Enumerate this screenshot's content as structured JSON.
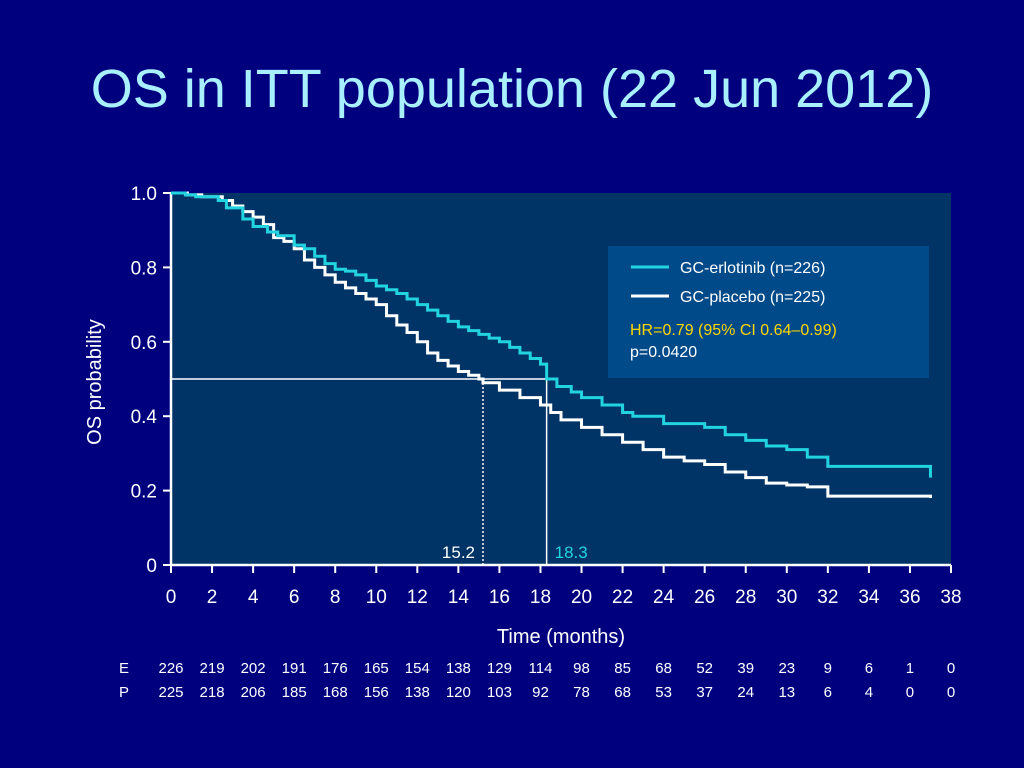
{
  "title": "OS in ITT population (22 Jun 2012)",
  "chart_data": {
    "type": "line",
    "subtype": "kaplan-meier",
    "title": "",
    "xlabel": "Time (months)",
    "ylabel": "OS probability",
    "xlim": [
      0,
      38
    ],
    "ylim": [
      0,
      1.0
    ],
    "x_ticks": [
      0,
      2,
      4,
      6,
      8,
      10,
      12,
      14,
      16,
      18,
      20,
      22,
      24,
      26,
      28,
      30,
      32,
      34,
      36,
      38
    ],
    "y_ticks": [
      0,
      0.2,
      0.4,
      0.6,
      0.8,
      1.0
    ],
    "y_tick_labels": [
      "0",
      "0.2",
      "0.4",
      "0.6",
      "0.8",
      "1.0"
    ],
    "plot_background": "#003366",
    "legend_position": "top-right",
    "series": [
      {
        "name": "GC-erlotinib (n=226)",
        "color": "#22d3e0",
        "x": [
          0,
          0.7,
          1.2,
          2.3,
          2.7,
          3.5,
          4.0,
          4.7,
          5.2,
          6.0,
          6.5,
          7.0,
          7.5,
          8.0,
          8.5,
          9.0,
          9.5,
          10.0,
          10.5,
          11.0,
          11.5,
          12.0,
          12.5,
          13.0,
          13.5,
          14.0,
          14.5,
          15.0,
          15.5,
          16.0,
          16.5,
          17.0,
          17.5,
          18.0,
          18.3,
          18.8,
          19.5,
          20.0,
          21.0,
          22.0,
          22.5,
          24.0,
          26.0,
          27.0,
          28.0,
          29.0,
          30.0,
          31.0,
          32.0,
          37.0
        ],
        "y": [
          1.0,
          0.995,
          0.99,
          0.98,
          0.96,
          0.93,
          0.91,
          0.895,
          0.885,
          0.86,
          0.85,
          0.83,
          0.81,
          0.795,
          0.79,
          0.78,
          0.765,
          0.75,
          0.74,
          0.73,
          0.715,
          0.7,
          0.685,
          0.67,
          0.655,
          0.64,
          0.63,
          0.62,
          0.61,
          0.6,
          0.585,
          0.57,
          0.555,
          0.54,
          0.5,
          0.48,
          0.465,
          0.45,
          0.43,
          0.41,
          0.4,
          0.38,
          0.37,
          0.35,
          0.335,
          0.32,
          0.31,
          0.29,
          0.265,
          0.235
        ]
      },
      {
        "name": "GC-placebo (n=225)",
        "color": "#ffffff",
        "x": [
          0,
          0.8,
          1.5,
          2.5,
          3.0,
          3.5,
          4.0,
          4.5,
          5.0,
          5.5,
          6.0,
          6.5,
          7.0,
          7.5,
          8.0,
          8.5,
          9.0,
          9.5,
          10.0,
          10.5,
          11.0,
          11.5,
          12.0,
          12.5,
          13.0,
          13.5,
          14.0,
          14.5,
          15.0,
          15.2,
          16.0,
          17.0,
          18.0,
          18.5,
          19.0,
          20.0,
          21.0,
          22.0,
          23.0,
          24.0,
          25.0,
          26.0,
          27.0,
          28.0,
          29.0,
          30.0,
          31.0,
          32.0,
          37.0
        ],
        "y": [
          1.0,
          0.995,
          0.99,
          0.98,
          0.965,
          0.95,
          0.935,
          0.915,
          0.88,
          0.87,
          0.85,
          0.82,
          0.8,
          0.78,
          0.76,
          0.745,
          0.73,
          0.715,
          0.7,
          0.67,
          0.645,
          0.625,
          0.6,
          0.57,
          0.55,
          0.535,
          0.52,
          0.51,
          0.5,
          0.49,
          0.47,
          0.45,
          0.43,
          0.41,
          0.39,
          0.37,
          0.35,
          0.33,
          0.31,
          0.29,
          0.28,
          0.27,
          0.25,
          0.235,
          0.22,
          0.215,
          0.21,
          0.185,
          0.18
        ]
      }
    ],
    "annotations": [
      {
        "text": "HR=0.79 (95% CI 0.64–0.99)",
        "color": "#ffd700"
      },
      {
        "text": "p=0.0420",
        "color": "#ffffff"
      }
    ],
    "median_lines": [
      {
        "x": 15.2,
        "y": 0.5,
        "label": "15.2",
        "style": "dotted",
        "color": "#ffffff"
      },
      {
        "x": 18.3,
        "y": 0.5,
        "label": "18.3",
        "style": "solid",
        "color": "#22d3e0"
      }
    ],
    "risk_table": {
      "times": [
        0,
        2,
        4,
        6,
        8,
        10,
        12,
        14,
        16,
        18,
        20,
        22,
        24,
        26,
        28,
        30,
        32,
        34,
        36,
        38
      ],
      "rows": [
        {
          "label": "E",
          "values": [
            "226",
            "219",
            "202",
            "191",
            "176",
            "165",
            "154",
            "138",
            "129",
            "114",
            "98",
            "85",
            "68",
            "52",
            "39",
            "23",
            "9",
            "6",
            "1",
            "0"
          ]
        },
        {
          "label": "P",
          "values": [
            "225",
            "218",
            "206",
            "185",
            "168",
            "156",
            "138",
            "120",
            "103",
            "92",
            "78",
            "68",
            "53",
            "37",
            "24",
            "13",
            "6",
            "4",
            "0",
            "0"
          ]
        }
      ]
    }
  }
}
